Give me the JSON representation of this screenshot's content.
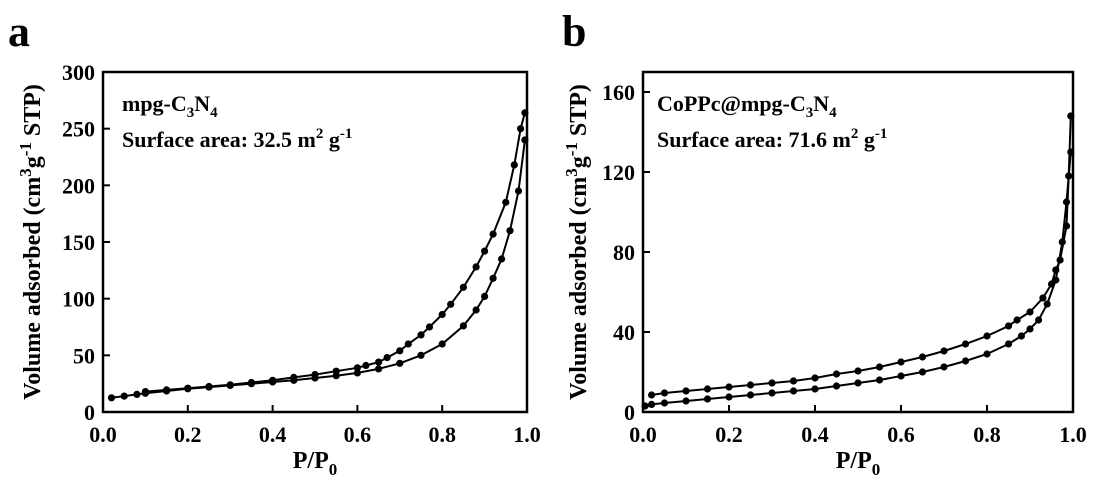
{
  "chart_data": [
    {
      "type": "scatter",
      "panel_label": "a",
      "xlabel": "P/P",
      "xlabel_sub": "0",
      "ylabel_pre": "Volume adsorbed (cm",
      "ylabel_sup1": "3",
      "ylabel_mid": "g",
      "ylabel_sup2": "-1",
      "ylabel_post": " STP)",
      "xlim": [
        0.0,
        1.0
      ],
      "ylim": [
        0,
        300
      ],
      "xticks": [
        0.0,
        0.2,
        0.4,
        0.6,
        0.8,
        1.0
      ],
      "xtick_labels": [
        "0.0",
        "0.2",
        "0.4",
        "0.6",
        "0.8",
        "1.0"
      ],
      "yticks": [
        0,
        50,
        100,
        150,
        200,
        250,
        300
      ],
      "ytick_labels": [
        "0",
        "50",
        "100",
        "150",
        "200",
        "250",
        "300"
      ],
      "annotation": {
        "sample_pre": "mpg-C",
        "sample_sub1": "3",
        "sample_mid": "N",
        "sample_sub2": "4",
        "surface_text": "Surface area:  32.5 m",
        "surface_sup": "2",
        "surface_unit": " g",
        "surface_unit_sup": "-1"
      },
      "series": [
        {
          "values": [
            [
              0.02,
              12.5
            ],
            [
              0.05,
              14
            ],
            [
              0.08,
              15.5
            ],
            [
              0.1,
              16.5
            ],
            [
              0.15,
              18.5
            ],
            [
              0.2,
              20.5
            ],
            [
              0.25,
              22
            ],
            [
              0.3,
              23.5
            ],
            [
              0.35,
              25
            ],
            [
              0.4,
              26.5
            ],
            [
              0.45,
              28
            ],
            [
              0.5,
              30
            ],
            [
              0.55,
              32
            ],
            [
              0.6,
              34.5
            ],
            [
              0.65,
              38
            ],
            [
              0.7,
              43
            ],
            [
              0.75,
              50
            ],
            [
              0.8,
              60
            ],
            [
              0.85,
              76
            ],
            [
              0.88,
              90
            ],
            [
              0.9,
              102
            ],
            [
              0.92,
              118
            ],
            [
              0.94,
              135
            ],
            [
              0.96,
              160
            ],
            [
              0.98,
              195
            ],
            [
              0.995,
              240
            ]
          ]
        },
        {
          "values": [
            [
              0.995,
              264
            ],
            [
              0.985,
              250
            ],
            [
              0.97,
              218
            ],
            [
              0.95,
              185
            ],
            [
              0.92,
              157
            ],
            [
              0.9,
              142
            ],
            [
              0.88,
              128
            ],
            [
              0.85,
              110
            ],
            [
              0.82,
              95
            ],
            [
              0.8,
              86
            ],
            [
              0.77,
              75
            ],
            [
              0.75,
              68
            ],
            [
              0.72,
              60
            ],
            [
              0.7,
              54
            ],
            [
              0.67,
              48
            ],
            [
              0.65,
              44
            ],
            [
              0.62,
              41
            ],
            [
              0.6,
              39
            ],
            [
              0.55,
              36
            ],
            [
              0.5,
              33
            ],
            [
              0.45,
              30.5
            ],
            [
              0.4,
              28
            ],
            [
              0.35,
              26
            ],
            [
              0.3,
              24
            ],
            [
              0.25,
              22.5
            ],
            [
              0.2,
              21
            ],
            [
              0.15,
              19.5
            ],
            [
              0.1,
              18
            ]
          ]
        }
      ]
    },
    {
      "type": "scatter",
      "panel_label": "b",
      "xlabel": "P/P",
      "xlabel_sub": "0",
      "ylabel_pre": "Volume adsorbed (cm",
      "ylabel_sup1": "3",
      "ylabel_mid": "g",
      "ylabel_sup2": "-1",
      "ylabel_post": " STP)",
      "xlim": [
        0.0,
        1.0
      ],
      "ylim": [
        0,
        170
      ],
      "xticks": [
        0.0,
        0.2,
        0.4,
        0.6,
        0.8,
        1.0
      ],
      "xtick_labels": [
        "0.0",
        "0.2",
        "0.4",
        "0.6",
        "0.8",
        "1.0"
      ],
      "yticks": [
        0,
        40,
        80,
        120,
        160
      ],
      "ytick_labels": [
        "0",
        "40",
        "80",
        "120",
        "160"
      ],
      "annotation": {
        "sample_pre": "CoPPc@mpg-C",
        "sample_sub1": "3",
        "sample_mid": "N",
        "sample_sub2": "4",
        "surface_text": "Surface area:  71.6 m",
        "surface_sup": "2",
        "surface_unit": " g",
        "surface_unit_sup": "-1"
      },
      "series": [
        {
          "values": [
            [
              0.005,
              3
            ],
            [
              0.02,
              3.8
            ],
            [
              0.05,
              4.5
            ],
            [
              0.1,
              5.5
            ],
            [
              0.15,
              6.5
            ],
            [
              0.2,
              7.5
            ],
            [
              0.25,
              8.5
            ],
            [
              0.3,
              9.5
            ],
            [
              0.35,
              10.5
            ],
            [
              0.4,
              11.5
            ],
            [
              0.45,
              13
            ],
            [
              0.5,
              14.5
            ],
            [
              0.55,
              16
            ],
            [
              0.6,
              18
            ],
            [
              0.65,
              20
            ],
            [
              0.7,
              22.5
            ],
            [
              0.75,
              25.5
            ],
            [
              0.8,
              29
            ],
            [
              0.85,
              34
            ],
            [
              0.88,
              38
            ],
            [
              0.9,
              41.5
            ],
            [
              0.92,
              46
            ],
            [
              0.94,
              54
            ],
            [
              0.96,
              66
            ],
            [
              0.975,
              85
            ],
            [
              0.985,
              105
            ],
            [
              0.995,
              130
            ]
          ]
        },
        {
          "values": [
            [
              0.995,
              148
            ],
            [
              0.99,
              118
            ],
            [
              0.985,
              93
            ],
            [
              0.97,
              76
            ],
            [
              0.96,
              71
            ],
            [
              0.95,
              64
            ],
            [
              0.93,
              57
            ],
            [
              0.9,
              50
            ],
            [
              0.87,
              46
            ],
            [
              0.85,
              43
            ],
            [
              0.8,
              38
            ],
            [
              0.75,
              34
            ],
            [
              0.7,
              30.5
            ],
            [
              0.65,
              27.5
            ],
            [
              0.6,
              25
            ],
            [
              0.55,
              22.5
            ],
            [
              0.5,
              20.5
            ],
            [
              0.45,
              19
            ],
            [
              0.4,
              17
            ],
            [
              0.35,
              15.5
            ],
            [
              0.3,
              14.5
            ],
            [
              0.25,
              13.5
            ],
            [
              0.2,
              12.5
            ],
            [
              0.15,
              11.5
            ],
            [
              0.1,
              10.5
            ],
            [
              0.05,
              9.5
            ],
            [
              0.02,
              8.5
            ]
          ]
        }
      ]
    }
  ]
}
